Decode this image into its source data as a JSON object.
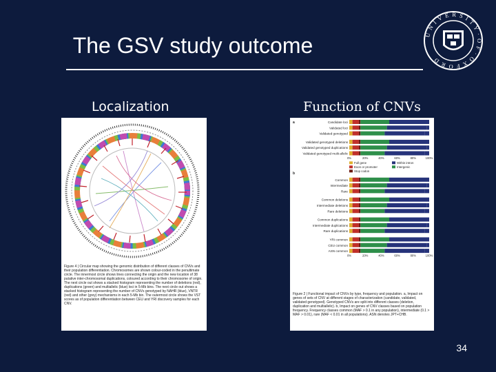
{
  "slide": {
    "title": "The GSV study outcome",
    "page_number": "34",
    "logo_text": "UNIVERSITY OF OXFORD"
  },
  "left": {
    "heading": "Localization",
    "caption": "Figure 4 | Circular map showing the genomic distribution of different classes of CNVs and their population differentiation. Chromosomes are shown colour-coded in the penultimate circle. The innermost circle shows lines connecting the origin and the new location of 38 putative inter-chromosomal duplications, coloured according to their chromosome of origin. The next circle out shows a stacked histogram representing the number of deletions (red), duplications (green) and multiallelic (blue) loci in 5-Mb bins. The next circle out shows a stacked histogram representing the number of CNVs genotyped by NAHR (blue), VNTR (red) and other (grey) mechanisms in each 5-Mb bin. The outermost circle shows the VST scores as of population differentiation between CEU and YRI discovery samples for each CNV."
  },
  "right": {
    "heading": "Function of CNVs",
    "panel_a_label": "a",
    "panel_b_label": "b",
    "rows_a": [
      "Candidate loci",
      "Validated loci",
      "Validated genotyped",
      "Validated genotyped deletions",
      "Validated genotyped duplications",
      "Validated genotyped multi-allelic"
    ],
    "rows_b": [
      "Common",
      "Intermediate",
      "Rare",
      "Common deletions",
      "Intermediate deletions",
      "Rare deletions",
      "Common duplications",
      "Intermediate duplications",
      "Rare duplications",
      "YRI common",
      "CEU common",
      "ASN common"
    ],
    "axis_ticks": [
      "0%",
      "20%",
      "40%",
      "60%",
      "80%",
      "100%"
    ],
    "legend": [
      "Full gene",
      "Exon or promoter",
      "Stop codon",
      "Within intron",
      "Intergenic"
    ],
    "caption": "Figure 2 | Functional impact of CNVs by type, frequency and population. a, Impact on genes of sets of CNV at different stages of characterization (candidate, validated, validated genotyped). Genotyped CNVs are split into different classes (deletion, duplication and multiallelic). b, Impact on genes of CNV classes based on population frequency. Frequency classes common (MAF > 0.1 in any population), intermediate (0.1 > MAF > 0.01), rare (MAF < 0.01 in all populations). ASN denotes JPT+CHB."
  },
  "colors": {
    "background": "#0d1b3d",
    "full_gene": "#e0b030",
    "exon_promoter": "#c0302a",
    "stop_codon": "#6b1a12",
    "within_intron": "#26337a",
    "intergenic": "#2e8f4a"
  }
}
